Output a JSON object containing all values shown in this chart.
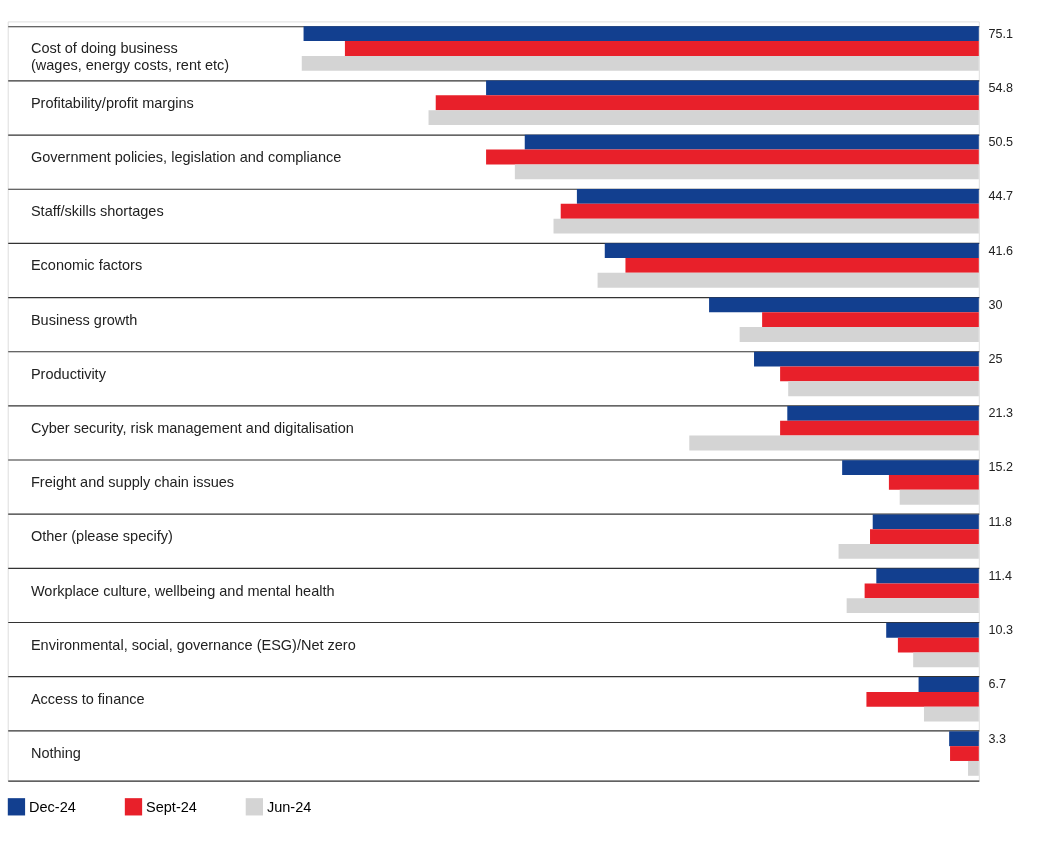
{
  "chart_data": {
    "type": "bar",
    "orientation": "horizontal",
    "xlim": [
      108,
      0
    ],
    "tick_labels": false,
    "grid": "y",
    "legend": "bottom",
    "categories": [
      "Cost of doing business\n(wages, energy costs, rent etc)",
      "Profitability/profit margins",
      "Government policies, legislation and compliance",
      "Staff/skills shortages",
      "Economic factors",
      "Business growth",
      "Productivity",
      "Cyber security, risk management and digitalisation",
      "Freight and supply chain issues",
      "Other (please specify)",
      "Workplace culture, wellbeing and mental health",
      "Environmental, social, governance (ESG)/Net zero",
      "Access to finance",
      "Nothing"
    ],
    "series": [
      {
        "name": "Dec-24",
        "color": "#123f8f",
        "values": [
          75.1,
          54.8,
          50.5,
          44.7,
          41.6,
          30,
          25,
          21.3,
          15.2,
          11.8,
          11.4,
          10.3,
          6.7,
          3.3
        ],
        "value_labels": [
          "75.1",
          "54.8",
          "50.5",
          "44.7",
          "41.6",
          "30",
          "25",
          "21.3",
          "15.2",
          "11.8",
          "11.4",
          "10.3",
          "6.7",
          "3.3"
        ]
      },
      {
        "name": "Sept-24",
        "color": "#e8202a",
        "values": [
          70.5,
          60.4,
          54.8,
          46.5,
          39.3,
          24.1,
          22.1,
          22.1,
          10.0,
          12.1,
          12.7,
          9.0,
          12.5,
          3.2
        ]
      },
      {
        "name": "Jun-24",
        "color": "#d4d4d4",
        "values": [
          75.3,
          61.2,
          51.6,
          47.3,
          42.4,
          26.6,
          21.2,
          32.2,
          8.8,
          15.6,
          14.7,
          7.3,
          6.1,
          1.2
        ]
      }
    ]
  }
}
